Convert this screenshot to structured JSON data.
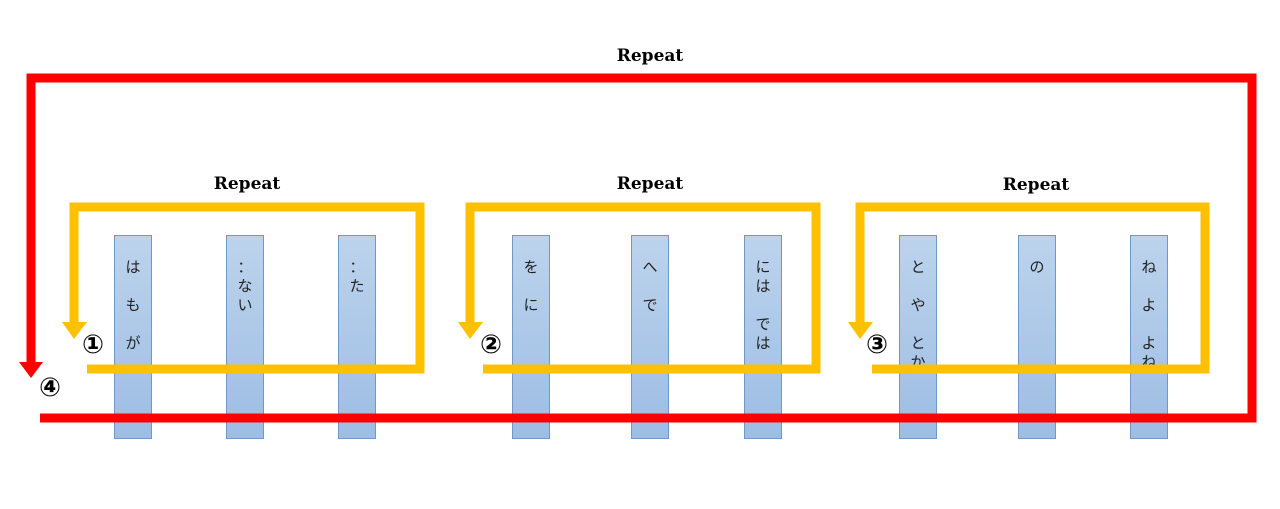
{
  "outer": {
    "title": "Repeat",
    "number": "④",
    "color": "#ff0000"
  },
  "groups": [
    {
      "title": "Repeat",
      "number": "①",
      "color": "#ffc000",
      "bars": [
        {
          "chars": [
            "は",
            "",
            "も",
            "",
            "が"
          ]
        },
        {
          "chars": [
            "：",
            "な",
            "い"
          ]
        },
        {
          "chars": [
            "：",
            "た"
          ]
        }
      ]
    },
    {
      "title": "Repeat",
      "number": "②",
      "color": "#ffc000",
      "bars": [
        {
          "chars": [
            "を",
            "",
            "に"
          ]
        },
        {
          "chars": [
            "へ",
            "",
            "で"
          ]
        },
        {
          "chars": [
            "に",
            "は",
            "",
            "で",
            "は"
          ]
        }
      ]
    },
    {
      "title": "Repeat",
      "number": "③",
      "color": "#ffc000",
      "bars": [
        {
          "chars": [
            "と",
            "",
            "や",
            "",
            "と",
            "か"
          ]
        },
        {
          "chars": [
            "の"
          ]
        },
        {
          "chars": [
            "ね",
            "",
            "よ",
            "",
            "よ",
            "ね"
          ]
        }
      ]
    }
  ]
}
